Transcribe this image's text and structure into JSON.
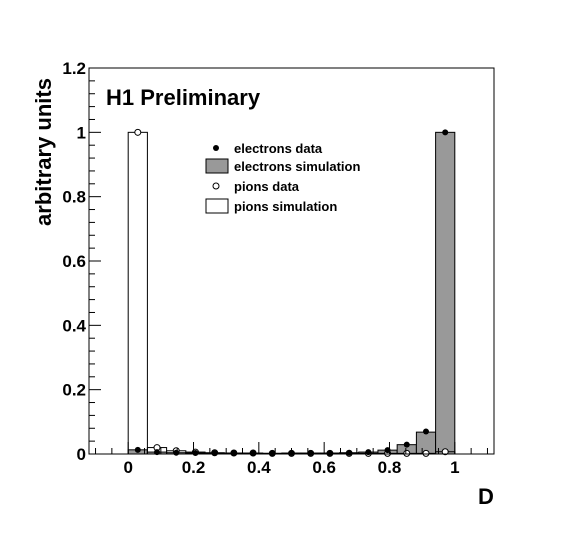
{
  "chart_data": {
    "type": "bar",
    "annotation": "H1 Preliminary",
    "xlabel": "D",
    "ylabel": "arbitrary units",
    "xlim": [
      -0.12,
      1.12
    ],
    "ylim": [
      0,
      1.2
    ],
    "x_ticks": [
      {
        "value": 0,
        "label": "0"
      },
      {
        "value": 0.2,
        "label": "0.2"
      },
      {
        "value": 0.4,
        "label": "0.4"
      },
      {
        "value": 0.6,
        "label": "0.6"
      },
      {
        "value": 0.8,
        "label": "0.8"
      },
      {
        "value": 1,
        "label": "1"
      }
    ],
    "y_ticks": [
      {
        "value": 0,
        "label": "0"
      },
      {
        "value": 0.2,
        "label": "0.2"
      },
      {
        "value": 0.4,
        "label": "0.4"
      },
      {
        "value": 0.6,
        "label": "0.6"
      },
      {
        "value": 0.8,
        "label": "0.8"
      },
      {
        "value": 1,
        "label": "1"
      },
      {
        "value": 1.2,
        "label": "1.2"
      }
    ],
    "grid": false,
    "legend_position": "top-center",
    "bin_edges": [
      0,
      0.0588,
      0.1176,
      0.1765,
      0.2353,
      0.2941,
      0.3529,
      0.4118,
      0.4706,
      0.5294,
      0.5882,
      0.6471,
      0.7059,
      0.7647,
      0.8235,
      0.8824,
      0.9412,
      1.0
    ],
    "bin_centers": [
      0.0294,
      0.0882,
      0.1471,
      0.2059,
      0.2647,
      0.3235,
      0.3824,
      0.4412,
      0.5,
      0.5588,
      0.6176,
      0.6765,
      0.7353,
      0.7941,
      0.8529,
      0.9118,
      0.9706
    ],
    "series": [
      {
        "name": "electrons data",
        "style": "filled-marker",
        "values": [
          0.013,
          0.006,
          0.004,
          0.003,
          0.003,
          0.003,
          0.002,
          0.002,
          0.003,
          0.003,
          0.003,
          0.004,
          0.006,
          0.012,
          0.029,
          0.07,
          1.0
        ]
      },
      {
        "name": "electrons simulation",
        "style": "filled-histogram",
        "color": "#999999",
        "values": [
          0.013,
          0.006,
          0.004,
          0.003,
          0.003,
          0.003,
          0.002,
          0.002,
          0.003,
          0.003,
          0.003,
          0.004,
          0.006,
          0.012,
          0.029,
          0.068,
          1.0
        ]
      },
      {
        "name": "pions data",
        "style": "open-marker",
        "values": [
          1.0,
          0.02,
          0.01,
          0.006,
          0.004,
          0.003,
          0.003,
          0.002,
          0.002,
          0.002,
          0.002,
          0.002,
          0.002,
          0.002,
          0.002,
          0.002,
          0.007
        ]
      },
      {
        "name": "pions simulation",
        "style": "open-histogram",
        "color": "#ffffff",
        "values": [
          1.0,
          0.02,
          0.01,
          0.006,
          0.004,
          0.003,
          0.003,
          0.002,
          0.002,
          0.002,
          0.002,
          0.002,
          0.002,
          0.002,
          0.002,
          0.002,
          0.007
        ]
      }
    ]
  }
}
